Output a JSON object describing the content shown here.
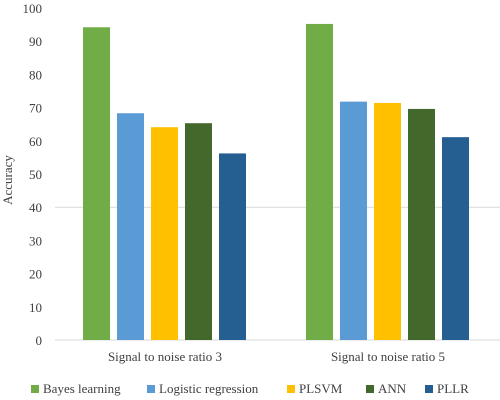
{
  "chart_data": {
    "type": "bar",
    "title": "",
    "xlabel": "",
    "ylabel": "Accuracy",
    "ylim": [
      0,
      100
    ],
    "yticks": [
      0,
      10,
      20,
      30,
      40,
      50,
      60,
      70,
      80,
      90,
      100
    ],
    "grid": "single line at 40",
    "legend_position": "bottom",
    "categories": [
      "Signal to noise ratio 3",
      "Signal to noise ratio 5"
    ],
    "series": [
      {
        "name": "Bayes learning",
        "color": "#70ad47",
        "values": [
          94.2,
          95.2
        ]
      },
      {
        "name": "Logistic regression",
        "color": "#5b9bd5",
        "values": [
          68.3,
          71.8
        ]
      },
      {
        "name": "PLSVM",
        "color": "#ffc000",
        "values": [
          64.1,
          71.4
        ]
      },
      {
        "name": "ANN",
        "color": "#43682b",
        "values": [
          65.3,
          69.6
        ]
      },
      {
        "name": "PLLR",
        "color": "#255e91",
        "values": [
          56.2,
          61.1
        ]
      }
    ]
  }
}
